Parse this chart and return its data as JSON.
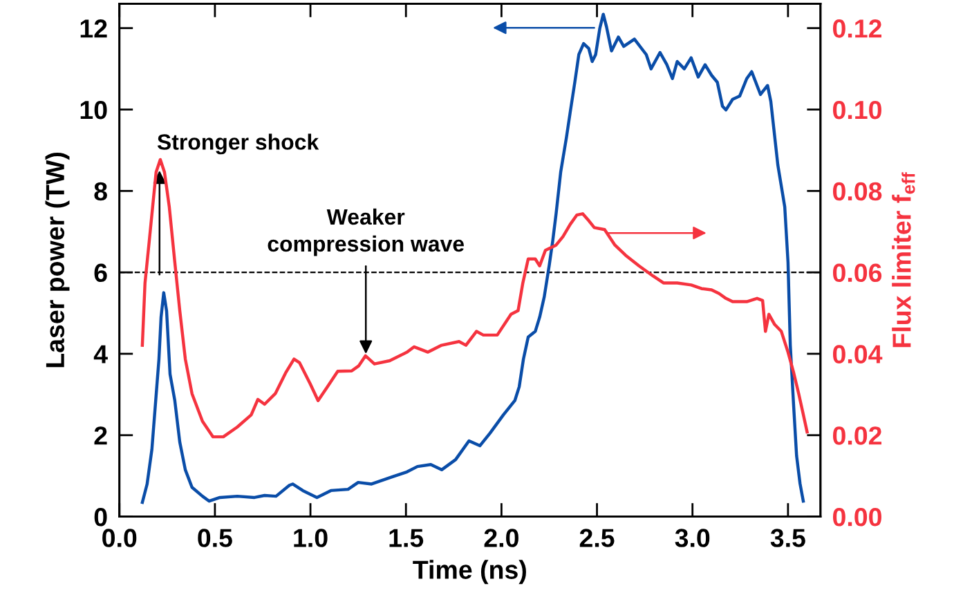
{
  "chart_data": {
    "type": "line",
    "xlabel": "Time (ns)",
    "ylabel": "Laser power (TW)",
    "y2label": "Flux limiter f$_{eff}$",
    "xlim": [
      0,
      3.67
    ],
    "xticks": [
      {
        "value": 0,
        "label": "0.0"
      },
      0.5,
      {
        "value": 1,
        "label": "1.0"
      },
      1.5,
      {
        "value": 2,
        "label": "2.0"
      },
      2.5,
      {
        "value": 3,
        "label": "3.0"
      },
      3.5
    ],
    "ylim": [
      0,
      12.6
    ],
    "yticks": [
      0,
      2,
      4,
      6,
      8,
      10,
      12
    ],
    "y2lim": [
      0,
      0.126
    ],
    "y2ticks": [
      {
        "value": 0,
        "label": "0.00"
      },
      {
        "value": 0.02,
        "label": "0.02"
      },
      {
        "value": 0.04,
        "label": "0.04"
      },
      {
        "value": 0.06,
        "label": "0.06"
      },
      {
        "value": 0.08,
        "label": "0.08"
      },
      {
        "value": 0.1,
        "label": "0.10"
      },
      {
        "value": 0.12,
        "label": "0.12"
      }
    ],
    "grid": false,
    "legend": false,
    "marker": "none",
    "line_style": "solid",
    "series": [
      {
        "color": "#0a4da8",
        "x": [
          0.12,
          0.145,
          0.17,
          0.19,
          0.207,
          0.218,
          0.232,
          0.247,
          0.265,
          0.29,
          0.316,
          0.345,
          0.38,
          0.435,
          0.47,
          0.526,
          0.617,
          0.707,
          0.76,
          0.82,
          0.89,
          0.907,
          0.96,
          1.034,
          1.107,
          1.197,
          1.25,
          1.32,
          1.43,
          1.506,
          1.56,
          1.63,
          1.687,
          1.76,
          1.83,
          1.887,
          1.94,
          2.01,
          2.07,
          2.093,
          2.115,
          2.14,
          2.177,
          2.2,
          2.224,
          2.25,
          2.268,
          2.286,
          2.31,
          2.34,
          2.362,
          2.384,
          2.405,
          2.43,
          2.457,
          2.475,
          2.493,
          2.515,
          2.533,
          2.55,
          2.576,
          2.612,
          2.64,
          2.696,
          2.758,
          2.783,
          2.83,
          2.866,
          2.895,
          2.92,
          2.957,
          2.993,
          3.03,
          3.066,
          3.1,
          3.13,
          3.157,
          3.175,
          3.21,
          3.247,
          3.284,
          3.31,
          3.356,
          3.393,
          3.41,
          3.447,
          3.483,
          3.5,
          3.512,
          3.53,
          3.545,
          3.563,
          3.58
        ],
        "values": [
          0.35,
          0.8,
          1.65,
          2.85,
          3.87,
          4.9,
          5.5,
          5.05,
          3.5,
          2.85,
          1.83,
          1.15,
          0.72,
          0.5,
          0.38,
          0.47,
          0.5,
          0.47,
          0.52,
          0.5,
          0.77,
          0.8,
          0.64,
          0.47,
          0.64,
          0.67,
          0.84,
          0.8,
          0.98,
          1.1,
          1.23,
          1.28,
          1.15,
          1.4,
          1.86,
          1.74,
          2.05,
          2.5,
          2.85,
          3.19,
          3.87,
          4.41,
          4.55,
          4.9,
          5.4,
          6.17,
          6.76,
          7.44,
          8.46,
          9.31,
          10.0,
          10.67,
          11.35,
          11.62,
          11.5,
          11.18,
          11.35,
          12.0,
          12.34,
          12.03,
          11.44,
          11.78,
          11.55,
          11.73,
          11.35,
          11.0,
          11.4,
          11.1,
          10.76,
          11.18,
          11.0,
          11.27,
          10.8,
          11.1,
          10.84,
          10.67,
          10.08,
          9.99,
          10.25,
          10.33,
          10.76,
          10.93,
          10.37,
          10.59,
          10.2,
          8.63,
          7.61,
          6.25,
          4.21,
          2.68,
          1.49,
          0.81,
          0.38
        ]
      },
      {
        "color": "#f5333f",
        "axis": "y2",
        "x": [
          0.12,
          0.134,
          0.156,
          0.174,
          0.192,
          0.214,
          0.236,
          0.261,
          0.29,
          0.316,
          0.345,
          0.38,
          0.435,
          0.49,
          0.544,
          0.617,
          0.69,
          0.725,
          0.76,
          0.816,
          0.87,
          0.914,
          0.943,
          0.998,
          1.04,
          1.089,
          1.143,
          1.216,
          1.252,
          1.288,
          1.335,
          1.415,
          1.506,
          1.542,
          1.615,
          1.687,
          1.778,
          1.814,
          1.869,
          1.905,
          1.978,
          2.05,
          2.087,
          2.112,
          2.14,
          2.177,
          2.2,
          2.23,
          2.286,
          2.322,
          2.36,
          2.395,
          2.425,
          2.457,
          2.486,
          2.54,
          2.594,
          2.65,
          2.72,
          2.794,
          2.848,
          2.92,
          2.993,
          3.048,
          3.1,
          3.139,
          3.175,
          3.21,
          3.284,
          3.338,
          3.367,
          3.382,
          3.4,
          3.43,
          3.465,
          3.5,
          3.53,
          3.556,
          3.58,
          3.6
        ],
        "values": [
          0.0421,
          0.0574,
          0.0676,
          0.0761,
          0.0846,
          0.0877,
          0.0846,
          0.0761,
          0.0625,
          0.0506,
          0.0387,
          0.0302,
          0.0234,
          0.0196,
          0.0196,
          0.022,
          0.025,
          0.0288,
          0.0276,
          0.0302,
          0.0353,
          0.0387,
          0.0378,
          0.0327,
          0.0285,
          0.0319,
          0.0357,
          0.0358,
          0.037,
          0.0395,
          0.0375,
          0.0383,
          0.0404,
          0.0417,
          0.0404,
          0.0421,
          0.043,
          0.0421,
          0.0455,
          0.0446,
          0.0446,
          0.0497,
          0.0506,
          0.0574,
          0.0633,
          0.0633,
          0.0616,
          0.0654,
          0.0667,
          0.0688,
          0.0718,
          0.0741,
          0.0744,
          0.0727,
          0.071,
          0.0705,
          0.0667,
          0.0642,
          0.0616,
          0.0591,
          0.0574,
          0.0574,
          0.0569,
          0.056,
          0.0557,
          0.0548,
          0.0536,
          0.0528,
          0.0528,
          0.0536,
          0.0531,
          0.0455,
          0.0497,
          0.0472,
          0.0455,
          0.0404,
          0.0353,
          0.0302,
          0.0251,
          0.0208
        ]
      }
    ],
    "ref_lines": [
      {
        "axis": "y",
        "value": 6,
        "line_style": "dashed",
        "color": "#000000"
      }
    ],
    "annotations": [
      {
        "text": "Stronger shock",
        "x": 0.21,
        "y": 8.55
      },
      {
        "text": "Weaker\ncompression wave",
        "x": 1.29,
        "y": 3.95
      }
    ]
  }
}
